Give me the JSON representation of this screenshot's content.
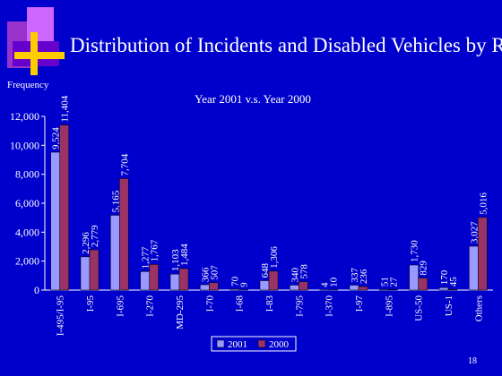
{
  "chart_data": {
    "type": "bar",
    "title": "Distribution of Incidents and Disabled Vehicles by Road",
    "subtitle": "Year 2001 v.s. Year 2000",
    "y_label": "Frequency",
    "categories": [
      "I-495/I-95",
      "I-95",
      "I-695",
      "I-270",
      "MD-295",
      "I-70",
      "I-68",
      "I-83",
      "I-795",
      "I-370",
      "I-97",
      "I-895",
      "US-50",
      "US-1",
      "Others"
    ],
    "series": [
      {
        "name": "2001",
        "color": "#9999ff",
        "values": [
          9524,
          2296,
          5165,
          1277,
          1103,
          366,
          70,
          648,
          340,
          4,
          337,
          51,
          1730,
          170,
          3027
        ],
        "value_labels": [
          "9,524",
          "2,296",
          "5,165",
          "1,277",
          "1,103",
          "366",
          "70",
          "648",
          "340",
          "4",
          "337",
          "51",
          "1,730",
          "170",
          "3,027"
        ]
      },
      {
        "name": "2000",
        "color": "#993366",
        "values": [
          11404,
          2779,
          7704,
          1767,
          1484,
          507,
          9,
          1306,
          578,
          10,
          236,
          27,
          829,
          45,
          5016
        ],
        "value_labels": [
          "11,404",
          "2,779",
          "7,704",
          "1,767",
          "1,484",
          "507",
          "9",
          "1,306",
          "578",
          "10",
          "236",
          "27",
          "829",
          "45",
          "5,016"
        ]
      }
    ],
    "ylim": [
      0,
      12000
    ],
    "yticks": [
      0,
      {
        "value": 2000,
        "label": "2,000"
      },
      {
        "value": 4000,
        "label": "4,000"
      },
      {
        "value": 6000,
        "label": "6,000"
      },
      {
        "value": 8000,
        "label": "8,000"
      },
      {
        "value": 10000,
        "label": "10,000"
      },
      {
        "value": 12000,
        "label": "12,000"
      }
    ],
    "legend": "bottom"
  },
  "page_number": "18"
}
